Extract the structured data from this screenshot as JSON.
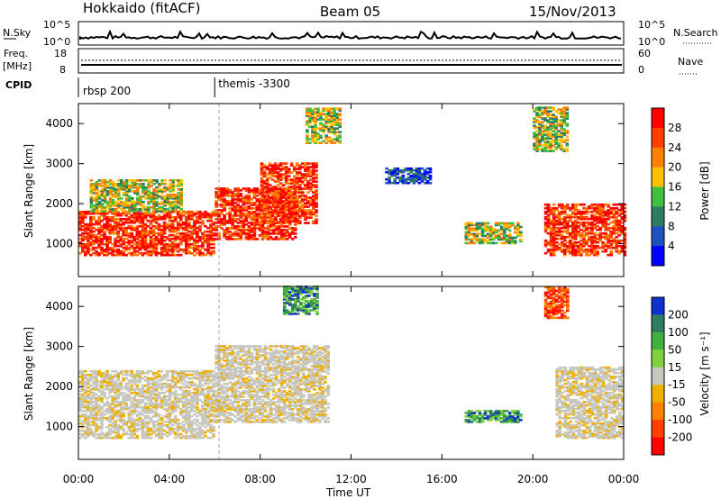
{
  "header": {
    "station": "Hokkaido (fitACF)",
    "beam": "Beam 05",
    "date": "15/Nov/2013"
  },
  "top_panels": {
    "nsky_label": "N.Sky",
    "nsearch_label": "N.Search",
    "count_ticks": [
      "10^5",
      "10^0"
    ],
    "freq_label_1": "Freq.",
    "freq_label_2": "[MHz]",
    "freq_ticks": [
      "18",
      "8"
    ],
    "nave_label": "Nave",
    "nave_ticks": [
      "60",
      "0"
    ],
    "cpid_label": "CPID",
    "cpid_entries": [
      {
        "name": "rbsp 200",
        "start_hour": 0
      },
      {
        "name": "themis -3300",
        "start_hour": 6
      }
    ]
  },
  "colorbars": {
    "power": {
      "label": "Power [dB]",
      "ticks": [
        "28",
        "24",
        "20",
        "16",
        "12",
        "8",
        "4"
      ],
      "colors": [
        "#ff0000",
        "#ff4000",
        "#ff8000",
        "#ffc000",
        "#40c040",
        "#2e7d60",
        "#2050c0",
        "#0000ff"
      ]
    },
    "velocity": {
      "label": "Velocity [m s⁻¹]",
      "ticks": [
        "200",
        "100",
        "50",
        "15",
        "-15",
        "-50",
        "-100",
        "-200"
      ],
      "colors": [
        "#1030d0",
        "#2e7d60",
        "#40b040",
        "#80d040",
        "#c8c8c0",
        "#f0b000",
        "#ff8000",
        "#ff4000",
        "#ff0000"
      ]
    }
  },
  "chart_data": [
    {
      "type": "heatmap",
      "title": "Power",
      "ylabel": "Slant Range [km]",
      "xlabel": "",
      "xlim": [
        "00:00",
        "24:00"
      ],
      "ylim": [
        180,
        4500
      ],
      "yticks": [
        "4000",
        "3000",
        "2000",
        "1000"
      ],
      "xticks": [
        "00:00",
        "04:00",
        "08:00",
        "12:00",
        "16:00",
        "20:00",
        "00:00"
      ],
      "regions": [
        {
          "t0": 0.0,
          "t1": 6.0,
          "r0": 700,
          "r1": 1800,
          "level": "high"
        },
        {
          "t0": 6.0,
          "t1": 9.5,
          "r0": 1100,
          "r1": 2400,
          "level": "high"
        },
        {
          "t0": 8.0,
          "t1": 10.5,
          "r0": 1500,
          "r1": 3000,
          "level": "high"
        },
        {
          "t0": 0.5,
          "t1": 4.5,
          "r0": 1800,
          "r1": 2600,
          "level": "medium"
        },
        {
          "t0": 10.0,
          "t1": 11.5,
          "r0": 3500,
          "r1": 4400,
          "level": "medium"
        },
        {
          "t0": 13.5,
          "t1": 15.5,
          "r0": 2500,
          "r1": 2900,
          "level": "low"
        },
        {
          "t0": 17.0,
          "t1": 19.5,
          "r0": 1000,
          "r1": 1500,
          "level": "medium"
        },
        {
          "t0": 20.5,
          "t1": 24.0,
          "r0": 700,
          "r1": 2000,
          "level": "high"
        },
        {
          "t0": 20.0,
          "t1": 21.5,
          "r0": 3300,
          "r1": 4400,
          "level": "medium"
        }
      ]
    },
    {
      "type": "heatmap",
      "title": "Velocity",
      "ylabel": "Slant Range [km]",
      "xlabel": "Time UT",
      "xlim": [
        "00:00",
        "24:00"
      ],
      "ylim": [
        180,
        4500
      ],
      "yticks": [
        "4000",
        "3000",
        "2000",
        "1000"
      ],
      "xticks": [
        "00:00",
        "04:00",
        "08:00",
        "12:00",
        "16:00",
        "20:00",
        "00:00"
      ],
      "regions": [
        {
          "t0": 0.0,
          "t1": 6.0,
          "r0": 700,
          "r1": 2400,
          "level": "near-zero"
        },
        {
          "t0": 6.0,
          "t1": 11.0,
          "r0": 1100,
          "r1": 3000,
          "level": "near-zero"
        },
        {
          "t0": 9.0,
          "t1": 10.5,
          "r0": 3800,
          "r1": 4500,
          "level": "positive"
        },
        {
          "t0": 17.0,
          "t1": 19.5,
          "r0": 1100,
          "r1": 1400,
          "level": "positive"
        },
        {
          "t0": 20.5,
          "t1": 21.5,
          "r0": 3700,
          "r1": 4500,
          "level": "negative"
        },
        {
          "t0": 21.0,
          "t1": 24.0,
          "r0": 700,
          "r1": 2500,
          "level": "near-zero"
        }
      ]
    }
  ]
}
